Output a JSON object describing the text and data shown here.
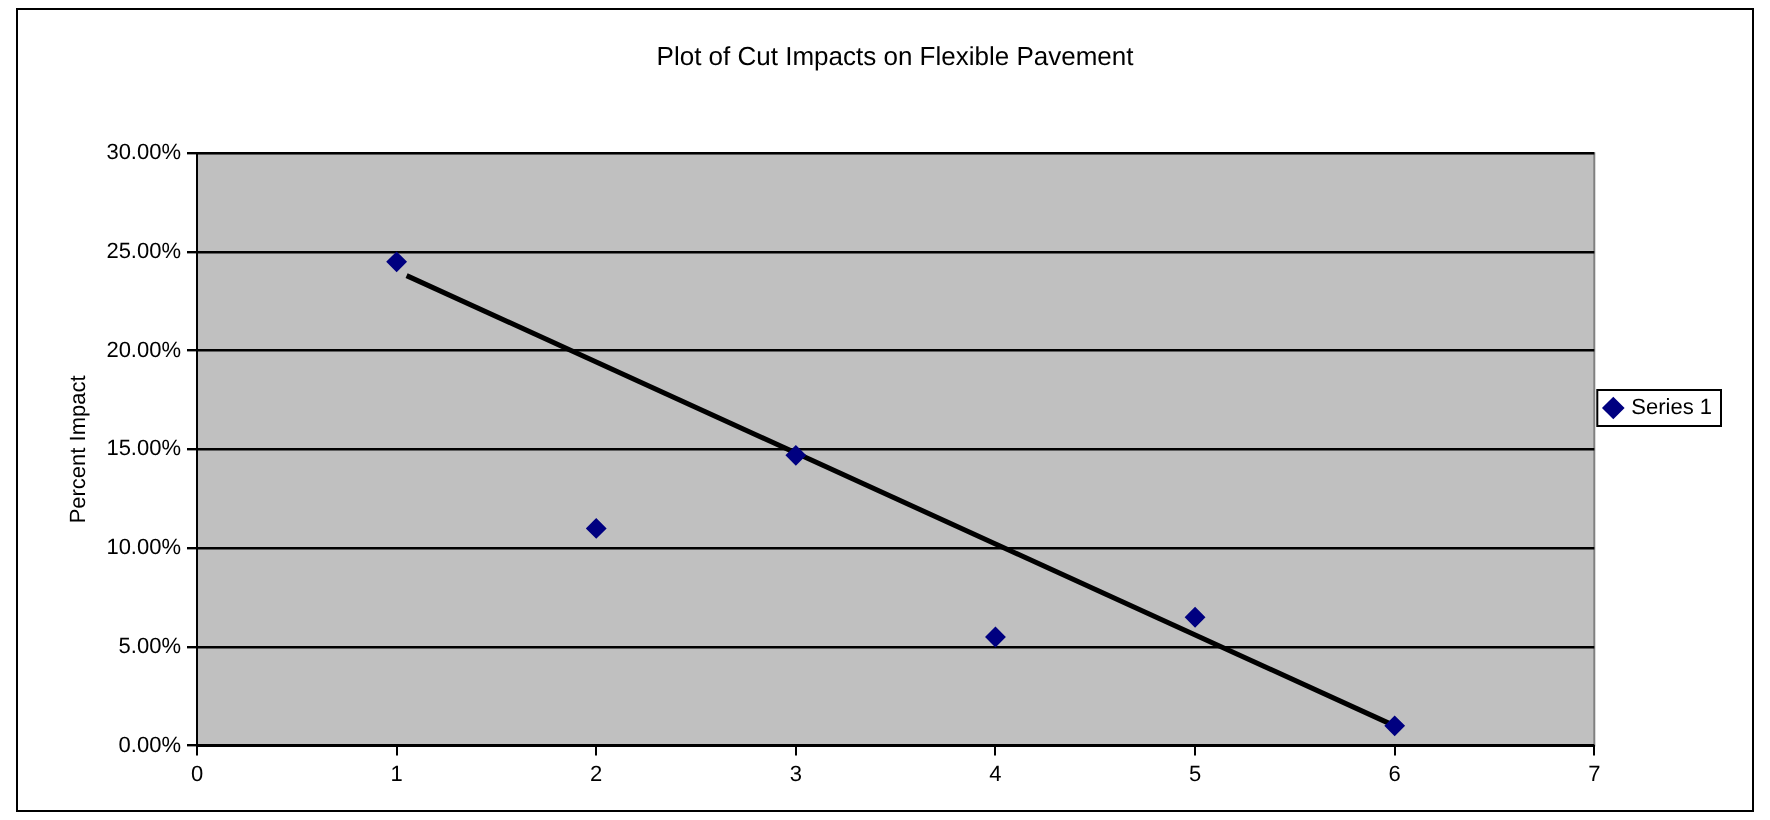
{
  "chart_data": {
    "type": "scatter",
    "title": "Plot of Cut Impacts on Flexible Pavement",
    "ylabel": "Percent Impact",
    "x": [
      1,
      2,
      3,
      4,
      5,
      6
    ],
    "series": [
      {
        "name": "Series 1",
        "color": "#000080",
        "values": [
          24.5,
          11,
          14.7,
          5.5,
          6.5,
          1
        ]
      },
      {
        "type": "line",
        "x": [
          1.05,
          6
        ],
        "values": [
          23.8,
          1.0
        ],
        "color": "#000000",
        "marker": "none"
      }
    ],
    "xlim": [
      0,
      7
    ],
    "xticks": [
      0,
      1,
      2,
      3,
      4,
      5,
      6,
      7
    ],
    "ylim": [
      0,
      30
    ],
    "yticks": [
      {
        "value": 0,
        "label": "0.00%"
      },
      {
        "value": 5,
        "label": "5.00%"
      },
      {
        "value": 10,
        "label": "10.00%"
      },
      {
        "value": 15,
        "label": "15.00%"
      },
      {
        "value": 20,
        "label": "20.00%"
      },
      {
        "value": 25,
        "label": "25.00%"
      },
      {
        "value": 30,
        "label": "30.00%"
      }
    ],
    "grid": "y",
    "legend": "right",
    "marker": "diamond"
  }
}
